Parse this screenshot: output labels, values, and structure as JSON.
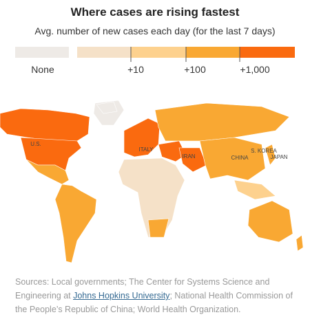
{
  "header": {
    "title": "Where cases are rising fastest",
    "subtitle": "Avg. number of new cases each day (for the last 7 days)"
  },
  "legend": {
    "none": "None",
    "ticks": [
      "+10",
      "+100",
      "+1,000"
    ]
  },
  "map": {
    "labels": [
      "U.S.",
      "ITALY",
      "IRAN",
      "CHINA",
      "S. KOREA",
      "JAPAN"
    ]
  },
  "sources": {
    "before": "Sources: Local governments; The Center for Systems Science and Engineering at ",
    "link": "Johns Hopkins University",
    "after": "; National Health Commission of the People’s Republic of China; World Health Organization."
  }
}
